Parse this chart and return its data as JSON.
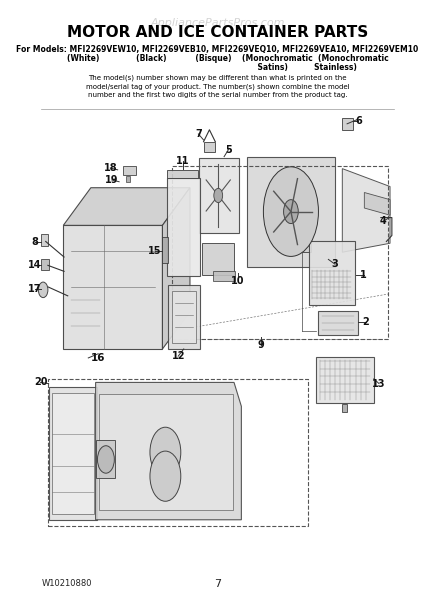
{
  "title": "MOTOR AND ICE CONTAINER PARTS",
  "watermark": "AppliancePartsPros.com",
  "models_line": "For Models: MFI2269VEW10, MFI2269VEB10, MFI2269VEQ10, MFI2269VEA10, MFI2269VEM10",
  "disclaimer": "The model(s) number shown may be different than what is printed on the\nmodel/serial tag of your product. The number(s) shown combine the model\nnumber and the first two digits of the serial number from the product tag.",
  "footer_left": "W10210880",
  "footer_center": "7",
  "bg_color": "#ffffff",
  "text_color": "#000000",
  "figsize": [
    4.35,
    6.0
  ],
  "dpi": 100
}
